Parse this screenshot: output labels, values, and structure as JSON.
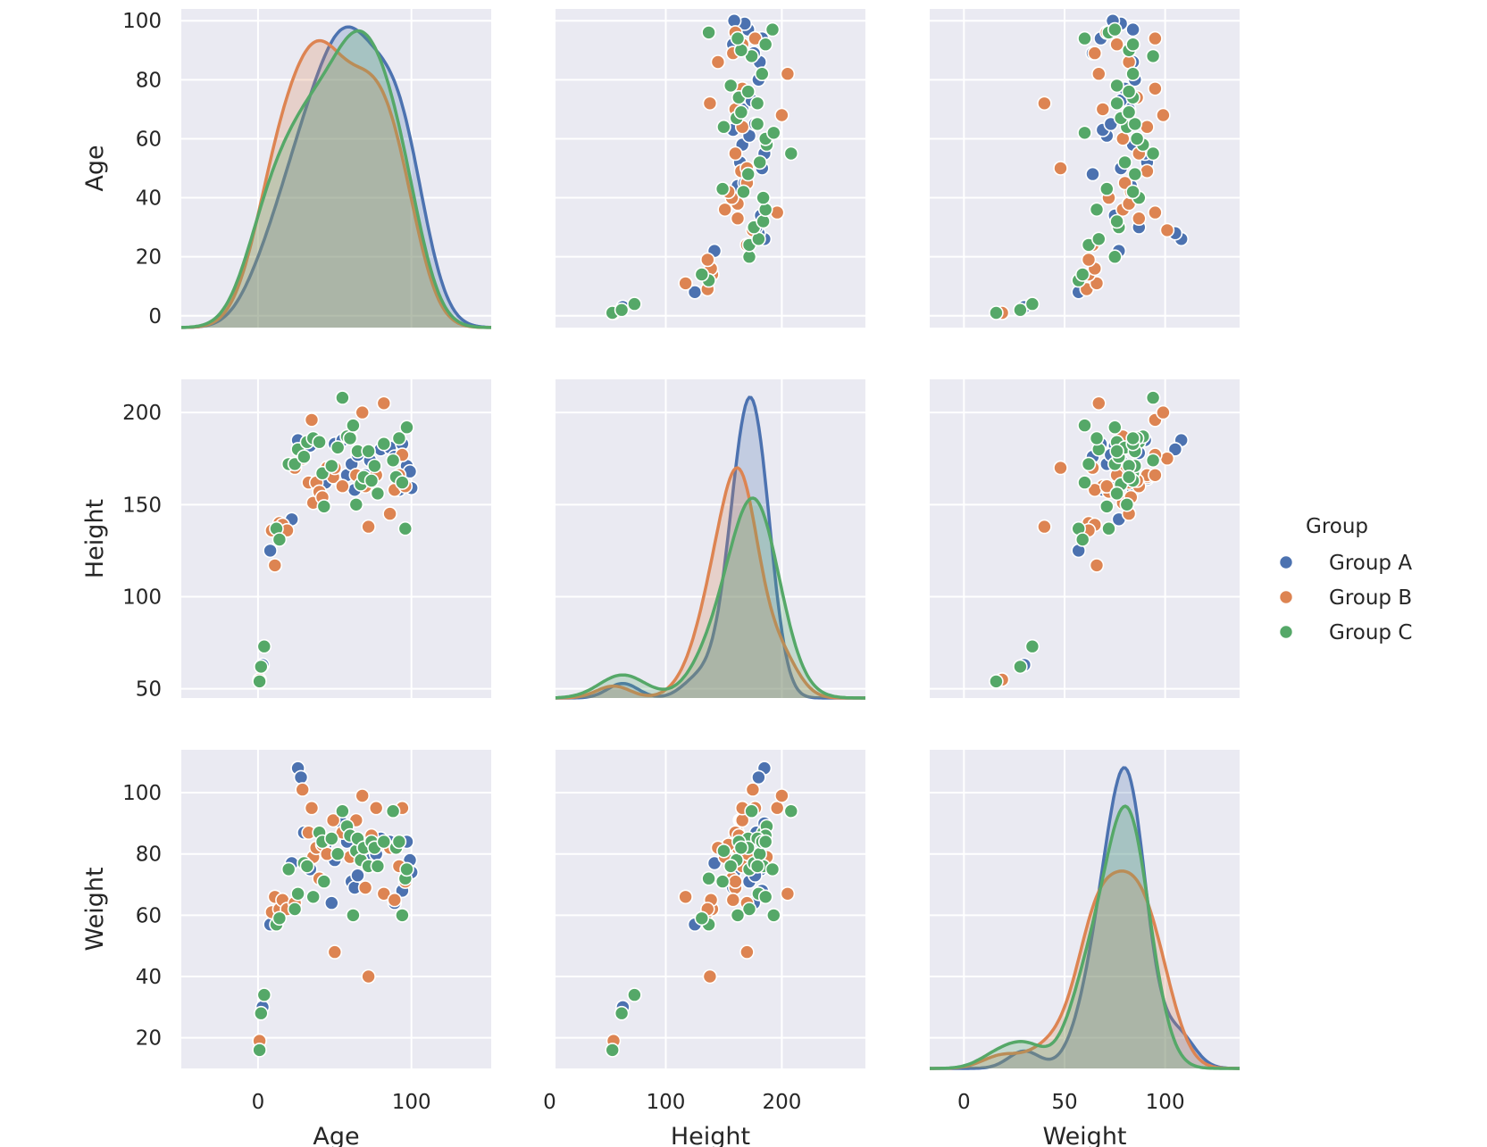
{
  "chart_data": {
    "type": "scatter",
    "variables": [
      "Age",
      "Height",
      "Weight"
    ],
    "axes": {
      "Age": {
        "lim": [
          -50,
          152
        ],
        "ticks": [
          0,
          20,
          40,
          60,
          80,
          100
        ],
        "xticks": [
          0,
          100
        ],
        "label": "Age",
        "row_lim": [
          -4,
          104
        ]
      },
      "Height": {
        "lim": [
          5,
          272
        ],
        "ticks": [
          50,
          100,
          150,
          200
        ],
        "xticks": [
          0,
          100,
          200
        ],
        "label": "Height",
        "row_lim": [
          45,
          218
        ]
      },
      "Weight": {
        "lim": [
          -17,
          137
        ],
        "ticks": [
          20,
          40,
          60,
          80,
          100
        ],
        "xticks": [
          0,
          50,
          100
        ],
        "label": "Weight",
        "row_lim": [
          10,
          114
        ]
      }
    },
    "grid": true,
    "legend": {
      "title": "Group",
      "position": "right",
      "entries": [
        "Group A",
        "Group B",
        "Group C"
      ]
    },
    "series": [
      {
        "name": "Group A",
        "color": "#4c72b0",
        "points": [
          [
            3,
            63,
            30
          ],
          [
            8,
            125,
            57
          ],
          [
            22,
            142,
            77
          ],
          [
            26,
            185,
            108
          ],
          [
            28,
            180,
            105
          ],
          [
            30,
            178,
            87
          ],
          [
            34,
            182,
            75
          ],
          [
            44,
            162,
            83
          ],
          [
            45,
            168,
            80
          ],
          [
            48,
            170,
            64
          ],
          [
            50,
            183,
            78
          ],
          [
            52,
            164,
            91
          ],
          [
            55,
            185,
            90
          ],
          [
            58,
            166,
            84
          ],
          [
            61,
            172,
            71
          ],
          [
            63,
            158,
            69
          ],
          [
            65,
            177,
            73
          ],
          [
            70,
            166,
            82
          ],
          [
            73,
            174,
            78
          ],
          [
            77,
            166,
            80
          ],
          [
            80,
            180,
            85
          ],
          [
            86,
            181,
            84
          ],
          [
            89,
            176,
            64
          ],
          [
            92,
            158,
            84
          ],
          [
            94,
            183,
            68
          ],
          [
            97,
            171,
            84
          ],
          [
            99,
            168,
            78
          ],
          [
            100,
            159,
            74
          ]
        ]
      },
      {
        "name": "Group B",
        "color": "#dd8452",
        "points": [
          [
            1,
            55,
            19
          ],
          [
            9,
            136,
            61
          ],
          [
            11,
            117,
            66
          ],
          [
            14,
            140,
            62
          ],
          [
            16,
            139,
            65
          ],
          [
            19,
            136,
            62
          ],
          [
            24,
            170,
            64
          ],
          [
            29,
            175,
            101
          ],
          [
            33,
            162,
            87
          ],
          [
            35,
            196,
            95
          ],
          [
            36,
            151,
            79
          ],
          [
            38,
            162,
            82
          ],
          [
            40,
            157,
            72
          ],
          [
            42,
            154,
            83
          ],
          [
            45,
            170,
            80
          ],
          [
            49,
            165,
            91
          ],
          [
            50,
            170,
            48
          ],
          [
            55,
            160,
            87
          ],
          [
            60,
            187,
            79
          ],
          [
            64,
            166,
            91
          ],
          [
            68,
            200,
            99
          ],
          [
            70,
            160,
            69
          ],
          [
            72,
            138,
            40
          ],
          [
            74,
            163,
            86
          ],
          [
            77,
            166,
            95
          ],
          [
            82,
            205,
            67
          ],
          [
            86,
            145,
            82
          ],
          [
            89,
            158,
            65
          ],
          [
            92,
            166,
            76
          ],
          [
            94,
            177,
            95
          ],
          [
            96,
            160,
            71
          ]
        ]
      },
      {
        "name": "Group C",
        "color": "#55a868",
        "points": [
          [
            1,
            54,
            16
          ],
          [
            2,
            62,
            28
          ],
          [
            4,
            73,
            34
          ],
          [
            12,
            137,
            57
          ],
          [
            14,
            131,
            59
          ],
          [
            20,
            172,
            75
          ],
          [
            24,
            172,
            62
          ],
          [
            26,
            180,
            67
          ],
          [
            30,
            176,
            77
          ],
          [
            32,
            184,
            76
          ],
          [
            36,
            186,
            66
          ],
          [
            40,
            184,
            87
          ],
          [
            42,
            167,
            84
          ],
          [
            43,
            149,
            71
          ],
          [
            48,
            171,
            85
          ],
          [
            52,
            181,
            80
          ],
          [
            55,
            208,
            94
          ],
          [
            58,
            187,
            89
          ],
          [
            60,
            186,
            86
          ],
          [
            62,
            193,
            60
          ],
          [
            64,
            150,
            81
          ],
          [
            65,
            179,
            85
          ],
          [
            67,
            161,
            78
          ],
          [
            69,
            165,
            82
          ],
          [
            72,
            179,
            76
          ],
          [
            74,
            163,
            84
          ],
          [
            76,
            171,
            82
          ],
          [
            78,
            156,
            76
          ],
          [
            82,
            183,
            84
          ],
          [
            88,
            174,
            94
          ],
          [
            90,
            165,
            82
          ],
          [
            92,
            186,
            84
          ],
          [
            94,
            162,
            60
          ],
          [
            96,
            137,
            72
          ],
          [
            97,
            192,
            75
          ]
        ]
      }
    ]
  }
}
